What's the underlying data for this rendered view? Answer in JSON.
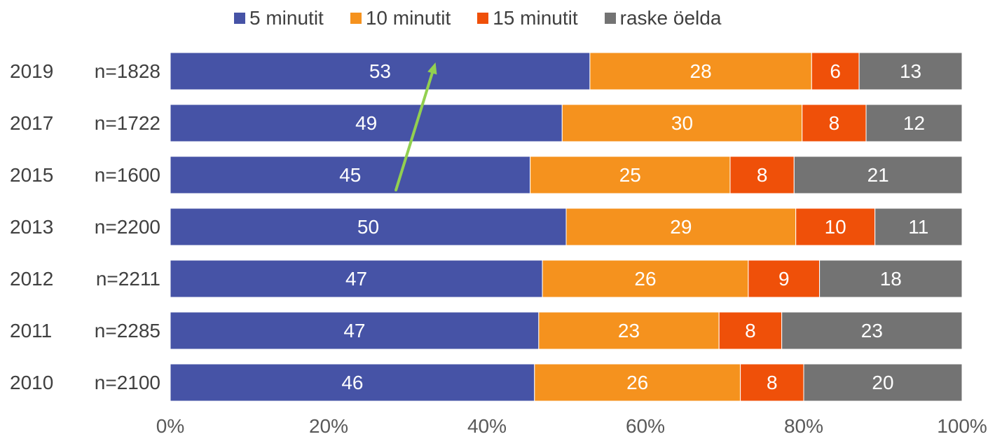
{
  "chart_data": {
    "type": "bar",
    "orientation": "horizontal",
    "stacked": "percent",
    "categories": [
      {
        "year": "2019",
        "n": "n=1828"
      },
      {
        "year": "2017",
        "n": "n=1722"
      },
      {
        "year": "2015",
        "n": "n=1600"
      },
      {
        "year": "2013",
        "n": "n=2200"
      },
      {
        "year": "2012",
        "n": "n=2211"
      },
      {
        "year": "2011",
        "n": "n=2285"
      },
      {
        "year": "2010",
        "n": "n=2100"
      }
    ],
    "series": [
      {
        "name": "5 minutit",
        "color": "#4653a6",
        "values": [
          53,
          49,
          45,
          50,
          47,
          47,
          46
        ]
      },
      {
        "name": "10 minutit",
        "color": "#f5921e",
        "values": [
          28,
          30,
          25,
          29,
          26,
          23,
          26
        ]
      },
      {
        "name": "15 minutit",
        "color": "#ef5009",
        "values": [
          6,
          8,
          8,
          10,
          9,
          8,
          8
        ]
      },
      {
        "name": "raske öelda",
        "color": "#737373",
        "values": [
          13,
          12,
          21,
          11,
          18,
          23,
          20
        ]
      }
    ],
    "x_ticks": [
      "0%",
      "20%",
      "40%",
      "60%",
      "80%",
      "100%"
    ],
    "xlim": [
      0,
      100
    ],
    "legend_position": "top",
    "grid": false,
    "annotation": {
      "type": "arrow",
      "color": "#92d050",
      "direction": "up",
      "from_category": "2015",
      "to_category": "2019",
      "from_value": 28.5,
      "to_value": 33.5
    }
  }
}
